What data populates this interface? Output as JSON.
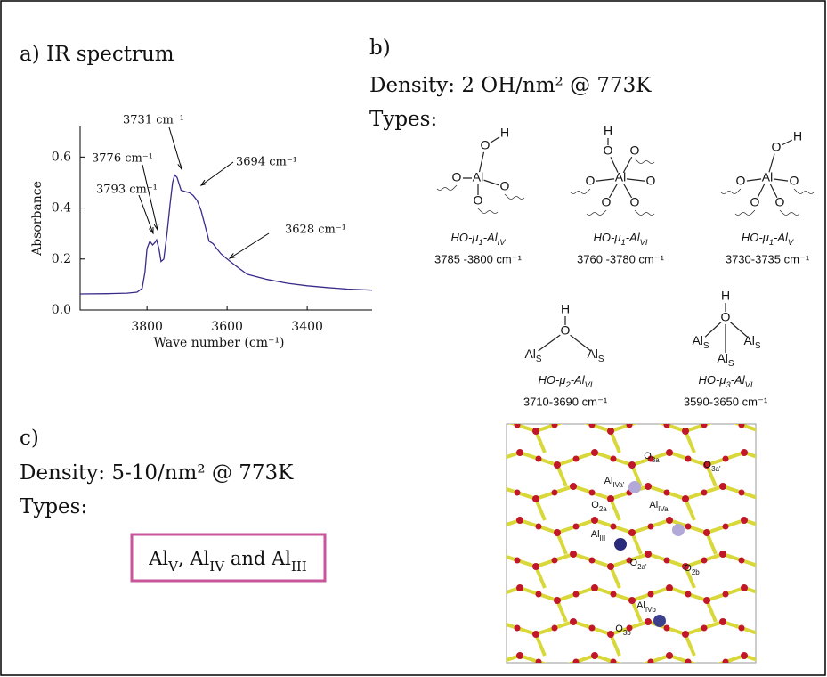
{
  "chart_data": {
    "type": "line",
    "title": "a) IR spectrum",
    "x_label": "Wave number (cm⁻¹)",
    "y_label": "Absorbance",
    "x": [
      3967,
      3900,
      3850,
      3825,
      3812,
      3805,
      3800,
      3793,
      3786,
      3780,
      3776,
      3770,
      3765,
      3758,
      3750,
      3742,
      3736,
      3731,
      3725,
      3715,
      3705,
      3694,
      3685,
      3675,
      3665,
      3655,
      3645,
      3635,
      3628,
      3615,
      3600,
      3580,
      3550,
      3500,
      3450,
      3400,
      3350,
      3300,
      3238
    ],
    "values": [
      0.063,
      0.064,
      0.066,
      0.07,
      0.085,
      0.15,
      0.24,
      0.27,
      0.255,
      0.265,
      0.275,
      0.24,
      0.19,
      0.2,
      0.3,
      0.42,
      0.5,
      0.53,
      0.52,
      0.47,
      0.465,
      0.46,
      0.45,
      0.43,
      0.39,
      0.33,
      0.27,
      0.26,
      0.245,
      0.22,
      0.2,
      0.175,
      0.14,
      0.12,
      0.105,
      0.095,
      0.088,
      0.082,
      0.078
    ],
    "color": "#3a2a8a",
    "xlim": [
      3967,
      3238
    ],
    "ylim": [
      0,
      0.72
    ],
    "xticks": [
      3800,
      3600,
      3400
    ],
    "yticks": [
      {
        "value": 0,
        "label": "0.0"
      },
      0.2,
      0.4,
      0.6
    ],
    "annotations": [
      "3731 cm⁻¹",
      "3776 cm⁻¹",
      "3793 cm⁻¹",
      "3694 cm⁻¹",
      "3628 cm⁻¹"
    ]
  },
  "panel_b": {
    "label": "b)",
    "density": "Density:  2 OH/nm² @ 773K",
    "types_label": "Types:",
    "structures": [
      {
        "atoms": [
          "O",
          "H",
          "Al",
          "O",
          "O",
          "O"
        ],
        "name": [
          "HO-μ",
          "1",
          "-Al",
          "IV"
        ],
        "range": "3785 -3800 cm⁻¹"
      },
      {
        "atoms": [
          "H",
          "O",
          "Al",
          "O",
          "O",
          "O",
          "O",
          "O"
        ],
        "name": [
          "HO-μ",
          "1",
          "-Al",
          "VI"
        ],
        "range": "3760 -3780 cm⁻¹"
      },
      {
        "atoms": [
          "H",
          "O",
          "Al",
          "O",
          "O",
          "O",
          "O"
        ],
        "name": [
          "HO-μ",
          "1",
          "-Al",
          "V"
        ],
        "range": "3730-3735 cm⁻¹"
      },
      {
        "atoms": [
          "H",
          "O",
          [
            "Al",
            "S"
          ],
          [
            "Al",
            "S"
          ]
        ],
        "name": [
          "HO-μ",
          "2",
          "-Al",
          "VI"
        ],
        "range": "3710-3690 cm⁻¹"
      },
      {
        "atoms": [
          "H",
          "O",
          [
            "Al",
            "S"
          ],
          [
            "Al",
            "S"
          ],
          [
            "Al",
            "S"
          ]
        ],
        "name": [
          "HO-μ",
          "3",
          "-Al",
          "VI"
        ],
        "range": "3590-3650  cm⁻¹"
      }
    ]
  },
  "panel_c": {
    "label": "c)",
    "density": "Density:  5-10/nm² @ 773K",
    "types_label": "Types:",
    "types": [
      "Al",
      "V",
      ", Al",
      "IV",
      " and Al",
      "III"
    ],
    "figure_labels": [
      [
        "O",
        "3a"
      ],
      [
        "O",
        "3a'"
      ],
      [
        "Al",
        "IVa'"
      ],
      [
        "Al",
        "IVa"
      ],
      [
        "O",
        "2a"
      ],
      [
        "Al",
        "III"
      ],
      [
        "O",
        "2a'"
      ],
      [
        "O",
        "2b"
      ],
      [
        "Al",
        "IVb"
      ],
      [
        "O",
        "3b"
      ]
    ]
  }
}
